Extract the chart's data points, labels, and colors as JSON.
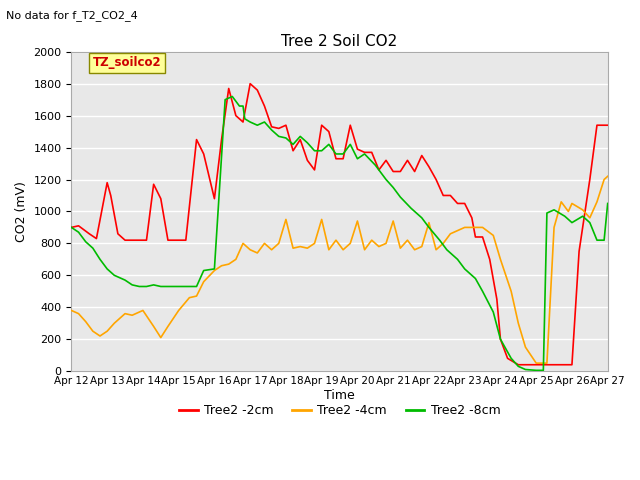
{
  "title": "Tree 2 Soil CO2",
  "subtitle": "No data for f_T2_CO2_4",
  "xlabel": "Time",
  "ylabel": "CO2 (mV)",
  "ylim": [
    0,
    2000
  ],
  "xlim": [
    0,
    15
  ],
  "yticks": [
    0,
    200,
    400,
    600,
    800,
    1000,
    1200,
    1400,
    1600,
    1800,
    2000
  ],
  "xtick_labels": [
    "Apr 12",
    "Apr 13",
    "Apr 14",
    "Apr 15",
    "Apr 16",
    "Apr 17",
    "Apr 18",
    "Apr 19",
    "Apr 20",
    "Apr 21",
    "Apr 22",
    "Apr 23",
    "Apr 24",
    "Apr 25",
    "Apr 26",
    "Apr 27"
  ],
  "line_colors": [
    "#ff0000",
    "#ffa500",
    "#00bb00"
  ],
  "line_labels": [
    "Tree2 -2cm",
    "Tree2 -4cm",
    "Tree2 -8cm"
  ],
  "legend_box_color": "#ffff99",
  "legend_box_label": "TZ_soilco2",
  "background_color": "#e8e8e8",
  "grid_color": "#ffffff",
  "series_2cm_x": [
    0,
    0.2,
    0.5,
    0.7,
    1.0,
    1.1,
    1.3,
    1.5,
    1.7,
    1.9,
    2.1,
    2.3,
    2.5,
    2.7,
    3.0,
    3.2,
    3.5,
    3.7,
    4.0,
    4.2,
    4.4,
    4.6,
    4.8,
    5.0,
    5.2,
    5.4,
    5.6,
    5.8,
    6.0,
    6.2,
    6.4,
    6.6,
    6.8,
    7.0,
    7.2,
    7.4,
    7.6,
    7.8,
    8.0,
    8.2,
    8.4,
    8.6,
    8.8,
    9.0,
    9.2,
    9.4,
    9.6,
    9.8,
    10.0,
    10.2,
    10.4,
    10.6,
    10.8,
    11.0,
    11.2,
    11.3,
    11.5,
    11.7,
    11.9,
    12.0,
    12.2,
    12.5,
    12.8,
    13.0,
    13.2,
    13.5,
    13.7,
    14.0,
    14.2,
    14.5,
    14.7,
    14.85,
    15.0
  ],
  "series_2cm_y": [
    900,
    910,
    860,
    830,
    1180,
    1100,
    860,
    820,
    820,
    820,
    820,
    1170,
    1080,
    820,
    820,
    820,
    1450,
    1360,
    1080,
    1450,
    1770,
    1600,
    1560,
    1800,
    1760,
    1660,
    1530,
    1520,
    1540,
    1380,
    1450,
    1320,
    1260,
    1540,
    1500,
    1330,
    1330,
    1540,
    1390,
    1370,
    1370,
    1260,
    1320,
    1250,
    1250,
    1320,
    1250,
    1350,
    1280,
    1200,
    1100,
    1100,
    1050,
    1050,
    960,
    840,
    840,
    700,
    450,
    200,
    80,
    40,
    40,
    40,
    40,
    40,
    40,
    40,
    750,
    1200,
    1540,
    1540,
    1540
  ],
  "series_4cm_x": [
    0,
    0.2,
    0.4,
    0.6,
    0.8,
    1.0,
    1.2,
    1.5,
    1.7,
    2.0,
    2.3,
    2.5,
    2.7,
    3.0,
    3.3,
    3.5,
    3.7,
    4.0,
    4.2,
    4.4,
    4.6,
    4.8,
    5.0,
    5.2,
    5.4,
    5.6,
    5.8,
    6.0,
    6.2,
    6.4,
    6.6,
    6.8,
    7.0,
    7.2,
    7.4,
    7.6,
    7.8,
    8.0,
    8.2,
    8.4,
    8.6,
    8.8,
    9.0,
    9.2,
    9.4,
    9.6,
    9.8,
    10.0,
    10.2,
    10.4,
    10.6,
    11.0,
    11.5,
    11.8,
    12.0,
    12.3,
    12.5,
    12.7,
    13.0,
    13.1,
    13.3,
    13.5,
    13.7,
    13.9,
    14.0,
    14.3,
    14.5,
    14.7,
    14.9,
    15.0
  ],
  "series_4cm_y": [
    380,
    360,
    310,
    250,
    220,
    250,
    300,
    360,
    350,
    380,
    280,
    210,
    280,
    380,
    460,
    470,
    560,
    630,
    660,
    670,
    700,
    800,
    760,
    740,
    800,
    760,
    800,
    950,
    770,
    780,
    770,
    800,
    950,
    760,
    820,
    760,
    800,
    940,
    760,
    820,
    780,
    800,
    940,
    770,
    820,
    760,
    780,
    930,
    760,
    800,
    860,
    900,
    900,
    850,
    700,
    500,
    300,
    150,
    50,
    50,
    50,
    900,
    1060,
    1000,
    1050,
    1010,
    960,
    1060,
    1200,
    1220
  ],
  "series_8cm_x": [
    0,
    0.2,
    0.4,
    0.6,
    0.8,
    1.0,
    1.2,
    1.5,
    1.7,
    1.9,
    2.1,
    2.3,
    2.5,
    2.7,
    3.0,
    3.2,
    3.5,
    3.7,
    4.0,
    4.3,
    4.5,
    4.7,
    4.8,
    4.85,
    5.0,
    5.2,
    5.4,
    5.6,
    5.8,
    6.0,
    6.2,
    6.4,
    6.6,
    6.8,
    7.0,
    7.2,
    7.4,
    7.6,
    7.8,
    8.0,
    8.2,
    8.5,
    8.8,
    9.0,
    9.2,
    9.5,
    9.8,
    10.0,
    10.3,
    10.5,
    10.8,
    11.0,
    11.3,
    11.5,
    11.8,
    12.0,
    12.3,
    12.5,
    12.7,
    13.0,
    13.1,
    13.2,
    13.3,
    13.5,
    13.8,
    14.0,
    14.3,
    14.5,
    14.7,
    14.9,
    15.0
  ],
  "series_8cm_y": [
    900,
    870,
    810,
    770,
    700,
    640,
    600,
    570,
    540,
    530,
    530,
    540,
    530,
    530,
    530,
    530,
    530,
    630,
    640,
    1700,
    1720,
    1660,
    1660,
    1580,
    1560,
    1540,
    1560,
    1510,
    1470,
    1460,
    1420,
    1470,
    1430,
    1380,
    1380,
    1420,
    1360,
    1360,
    1420,
    1330,
    1360,
    1290,
    1200,
    1150,
    1090,
    1020,
    960,
    900,
    820,
    760,
    700,
    640,
    580,
    500,
    370,
    200,
    80,
    30,
    10,
    5,
    5,
    5,
    990,
    1010,
    970,
    930,
    970,
    930,
    820,
    820,
    1050
  ]
}
